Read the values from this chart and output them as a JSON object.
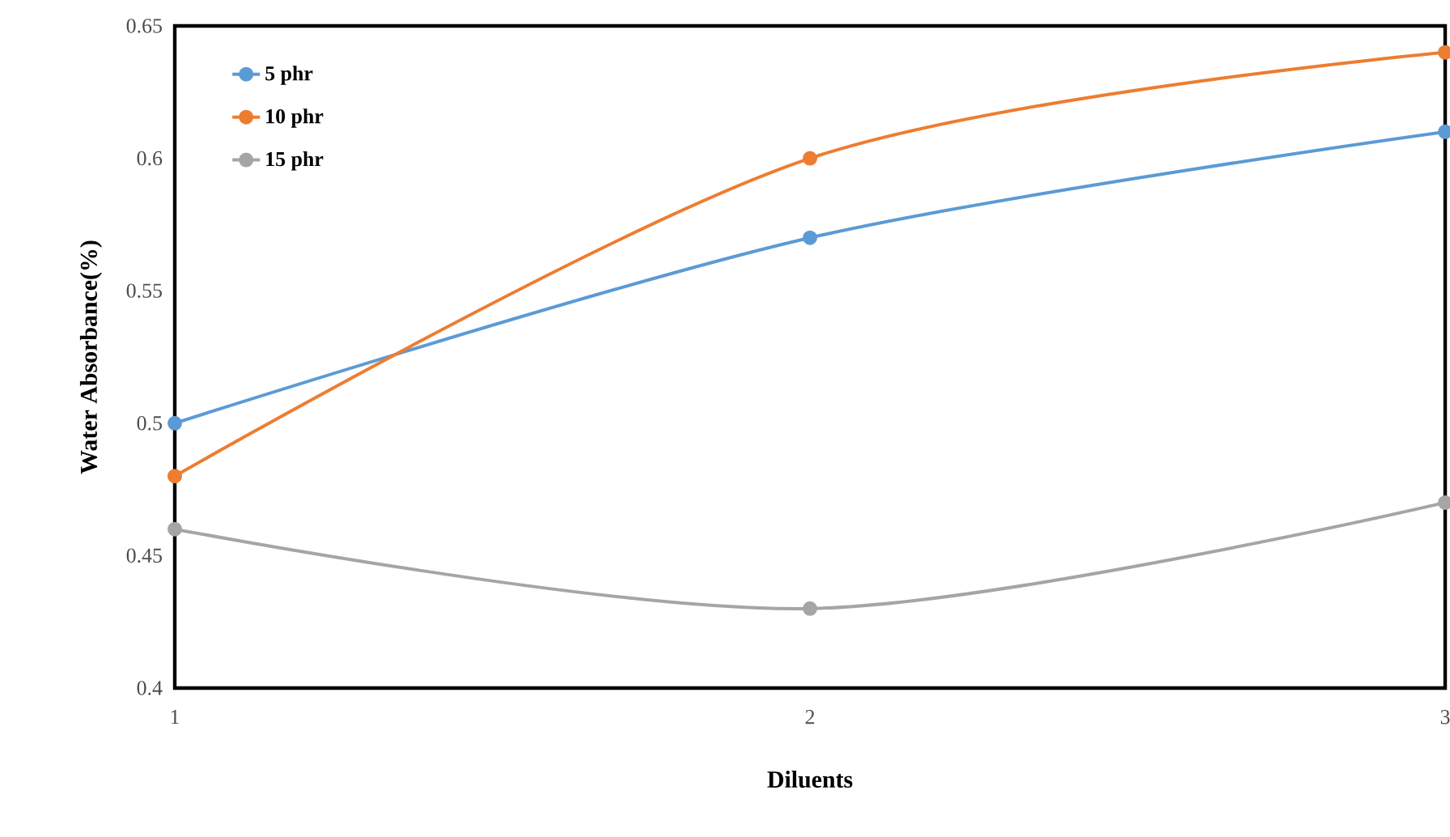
{
  "chart_data": {
    "type": "line",
    "xlabel": "Diluents",
    "ylabel": "Water  Absorbance(%)",
    "x": [
      1,
      2,
      3
    ],
    "xlim": [
      1,
      3
    ],
    "xticks": [
      1,
      2,
      3
    ],
    "ylim": [
      0.4,
      0.65
    ],
    "yticks": [
      0.4,
      0.45,
      0.5,
      0.55,
      0.6,
      0.65
    ],
    "series": [
      {
        "name": "5 phr",
        "color": "#5b9bd5",
        "values": [
          0.5,
          0.57,
          0.61
        ]
      },
      {
        "name": "10 phr",
        "color": "#ed7d31",
        "values": [
          0.48,
          0.6,
          0.64
        ]
      },
      {
        "name": "15 phr",
        "color": "#a5a5a5",
        "values": [
          0.46,
          0.43,
          0.47
        ]
      }
    ],
    "legend": "top left",
    "marker": "circle"
  }
}
